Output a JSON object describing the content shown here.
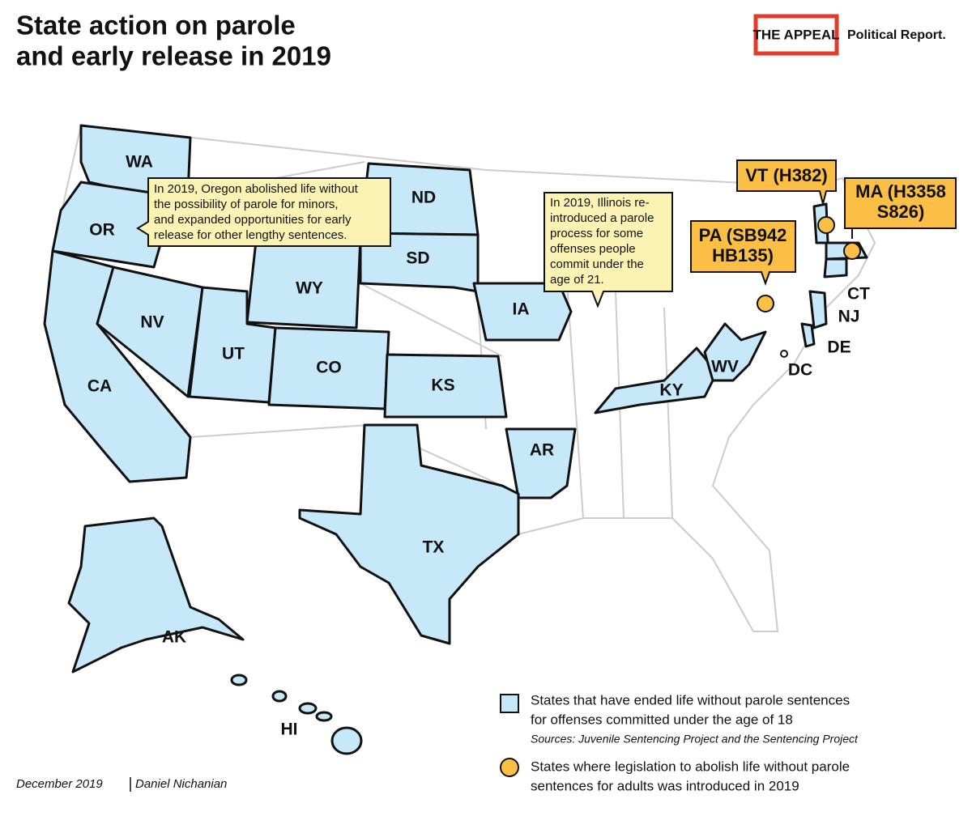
{
  "header": {
    "title_lines": [
      "State action on parole",
      "and early release in 2019"
    ],
    "logo": "THE APPEAL",
    "logo_sub": "Political Report."
  },
  "states": [
    "WA",
    "OR",
    "CA",
    "NV",
    "UT",
    "WY",
    "CO",
    "ND",
    "SD",
    "KS",
    "IA",
    "AR",
    "TX",
    "KY",
    "WV",
    "AK",
    "HI",
    "CT",
    "NJ",
    "DE",
    "DC"
  ],
  "notes": {
    "oregon": [
      "In 2019, Oregon abolished life without",
      "the possibility of parole for minors,",
      "and expanded opportunities for early",
      "release for other lengthy sentences."
    ],
    "illinois": [
      "In 2019, Illinois re-",
      "introduced a parole",
      "process for some",
      "offenses people",
      "commit under the",
      "age of 21."
    ]
  },
  "bills": {
    "vt": [
      "VT (H382)"
    ],
    "ma": [
      "MA (H3358",
      "S826)"
    ],
    "pa": [
      "PA (SB942",
      "HB135)"
    ]
  },
  "legend": {
    "blue": [
      "States that have ended life without parole sentences",
      "for offenses committed under the age of 18"
    ],
    "sources": "Sources: Juvenile Sentencing Project and the Sentencing Project",
    "orange": [
      "States where legislation to abolish life without parole",
      "sentences for adults was introduced in 2019"
    ]
  },
  "footer": {
    "date": "December 2019",
    "author": "Daniel Nichanian"
  }
}
